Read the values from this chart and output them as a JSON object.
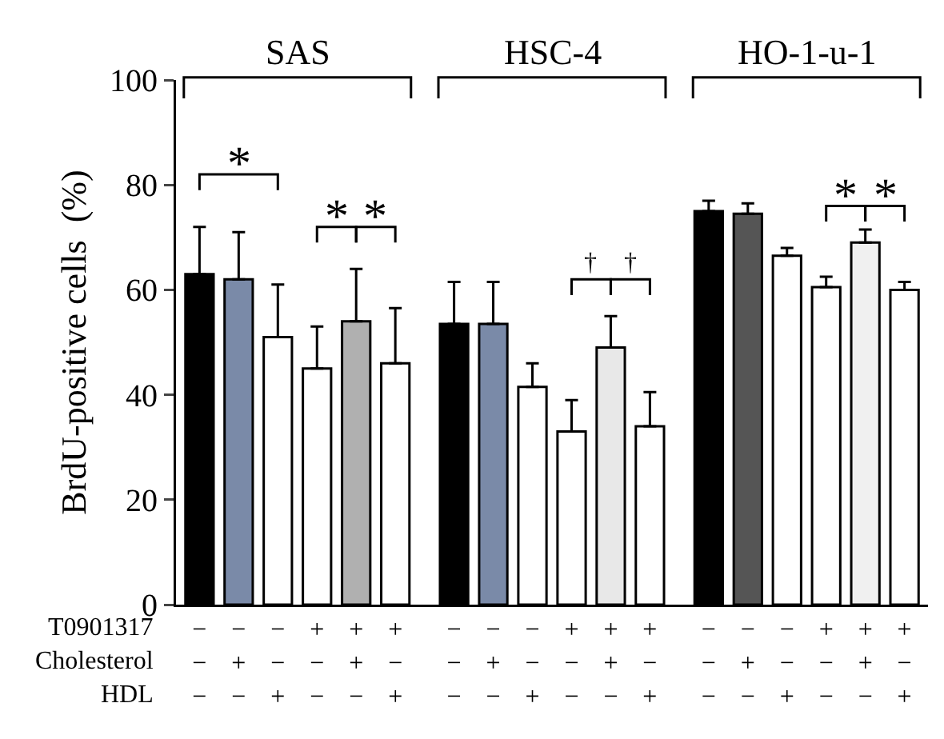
{
  "chart_data": {
    "type": "bar",
    "ylabel": "BrdU-positive cells  (%)",
    "categories": [
      "−\n−\n−",
      "−\n+\n−",
      "−\n−\n+",
      "+\n−\n−",
      "+\n+\n−",
      "+\n−\n+",
      "−\n−\n−",
      "−\n+\n−",
      "−\n−\n+",
      "+\n−\n−",
      "+\n+\n−",
      "+\n−\n+",
      "−\n−\n−",
      "−\n+\n−",
      "−\n−\n+",
      "+\n−\n−",
      "+\n+\n−",
      "+\n−\n+"
    ],
    "values": [
      63,
      62,
      51,
      45,
      54,
      46,
      53.5,
      53.5,
      41.5,
      33,
      49,
      34,
      75,
      74.5,
      66.5,
      60.5,
      69,
      60
    ],
    "errors": [
      [
        63,
        72
      ],
      [
        62,
        71
      ],
      [
        51,
        61
      ],
      [
        45,
        53
      ],
      [
        54,
        64
      ],
      [
        46,
        56.5
      ],
      [
        53.5,
        61.5
      ],
      [
        53.5,
        61.5
      ],
      [
        41.5,
        46
      ],
      [
        33,
        39
      ],
      [
        49,
        55
      ],
      [
        34,
        40.5
      ],
      [
        75,
        77
      ],
      [
        74.5,
        76.5
      ],
      [
        66.5,
        68
      ],
      [
        60.5,
        62.5
      ],
      [
        69,
        71.5
      ],
      [
        60,
        61.5
      ]
    ],
    "colors": [
      "#000000",
      "#7a8aa8",
      "#ffffff",
      "#ffffff",
      "#b0b0b0",
      "#ffffff",
      "#000000",
      "#7a8aa8",
      "#ffffff",
      "#ffffff",
      "#e8e8e8",
      "#ffffff",
      "#000000",
      "#555555",
      "#ffffff",
      "#ffffff",
      "#f0f0f0",
      "#ffffff"
    ],
    "ylim": [
      0,
      100
    ],
    "yticks": [
      0,
      20,
      40,
      60,
      80,
      100
    ],
    "grid": false,
    "annotations": [
      "SAS",
      "HSC-4",
      "HO-1-u-1",
      "T0901317",
      "Cholesterol",
      "HDL",
      "*",
      "*",
      "*",
      "†",
      "†",
      "*",
      "*"
    ]
  }
}
